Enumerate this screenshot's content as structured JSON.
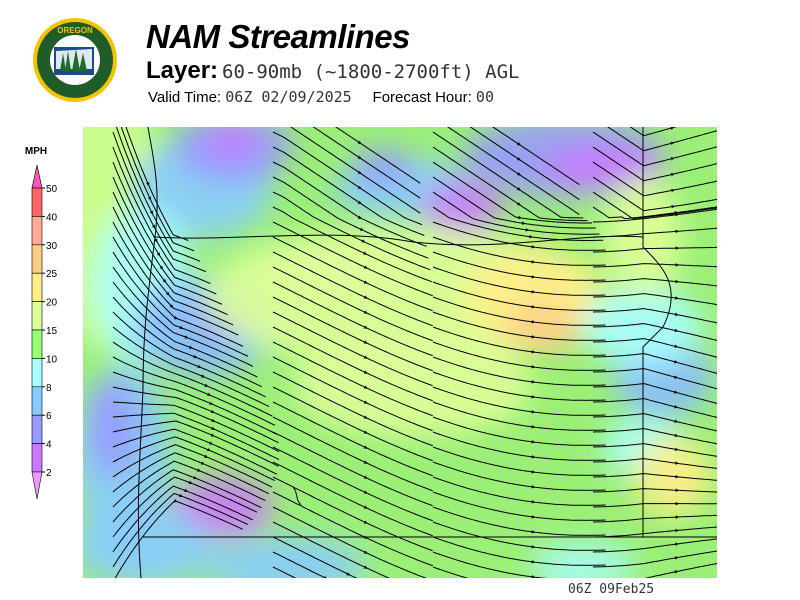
{
  "header": {
    "title": "NAM Streamlines",
    "layer_label": "Layer:",
    "layer_value": "60-90mb (~1800-2700ft) AGL",
    "valid_label": "Valid Time:",
    "valid_value": "06Z 02/09/2025",
    "forecast_label": "Forecast Hour:",
    "forecast_value": "00"
  },
  "logo": {
    "top_text": "OREGON",
    "bottom_text": "DEPARTMENT OF FORESTRY"
  },
  "legend": {
    "unit": "MPH",
    "levels": [
      "50",
      "40",
      "30",
      "25",
      "20",
      "15",
      "10",
      "8",
      "6",
      "4",
      "2"
    ],
    "colors": {
      "above": "#ff55bb",
      "bands": [
        "#ff6666",
        "#ffaa99",
        "#ffcc88",
        "#ffee88",
        "#ddff99",
        "#99ff77",
        "#aaffff",
        "#88ccff",
        "#9999ff",
        "#cc77ff"
      ],
      "below": "#ee99ff"
    }
  },
  "footer": {
    "timestamp": "06Z 09Feb25"
  }
}
